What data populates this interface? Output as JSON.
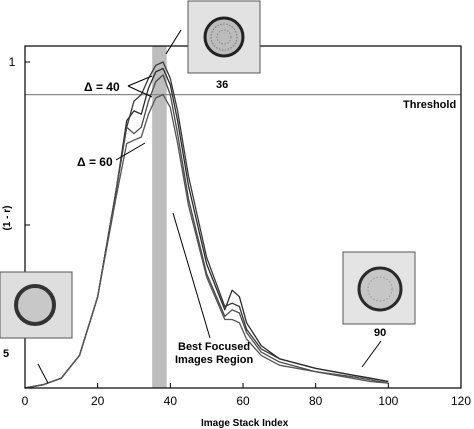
{
  "chart_data": {
    "type": "line",
    "xlabel": "Image  Stack Index",
    "ylabel": "(1 - r)",
    "xlim": [
      0,
      120
    ],
    "ylim": [
      0,
      1.05
    ],
    "x_ticks": [
      "0",
      "20",
      "40",
      "60",
      "80",
      "100",
      "120"
    ],
    "y_ticks": [
      "1"
    ],
    "grid": false,
    "threshold": {
      "value": 0.9,
      "label": "Threshold"
    },
    "best_focus_band": {
      "x_range": [
        35,
        39
      ],
      "label_line1": "Best Focused",
      "label_line2": "Images Region"
    },
    "delta_labels": [
      "Δ = 40",
      "Δ = 60"
    ],
    "inset_labels": [
      "36",
      "5",
      "90"
    ],
    "series": [
      {
        "x": [
          0,
          5,
          10,
          15,
          20,
          25,
          28,
          30,
          32,
          34,
          36,
          38,
          40,
          42,
          45,
          50,
          55,
          57,
          59,
          61,
          65,
          70,
          80,
          90,
          95,
          100
        ],
        "y": [
          0,
          0.01,
          0.03,
          0.1,
          0.28,
          0.6,
          0.8,
          0.88,
          0.9,
          0.95,
          0.99,
          1.0,
          0.95,
          0.85,
          0.65,
          0.4,
          0.25,
          0.26,
          0.25,
          0.18,
          0.12,
          0.09,
          0.06,
          0.04,
          0.03,
          0.02
        ]
      },
      {
        "x": [
          0,
          5,
          10,
          15,
          20,
          25,
          28,
          30,
          32,
          34,
          36,
          38,
          40,
          42,
          45,
          50,
          55,
          57,
          59,
          61,
          65,
          70,
          80,
          90,
          95,
          100
        ],
        "y": [
          0,
          0.01,
          0.03,
          0.1,
          0.28,
          0.6,
          0.82,
          0.85,
          0.84,
          0.92,
          0.97,
          0.98,
          0.93,
          0.82,
          0.62,
          0.38,
          0.24,
          0.3,
          0.28,
          0.2,
          0.13,
          0.09,
          0.06,
          0.04,
          0.03,
          0.02
        ]
      },
      {
        "x": [
          0,
          5,
          10,
          15,
          20,
          25,
          28,
          30,
          32,
          34,
          36,
          38,
          40,
          42,
          45,
          50,
          55,
          57,
          59,
          61,
          65,
          70,
          80,
          90,
          95,
          100
        ],
        "y": [
          0,
          0.01,
          0.03,
          0.1,
          0.28,
          0.6,
          0.8,
          0.78,
          0.8,
          0.88,
          0.94,
          0.96,
          0.9,
          0.78,
          0.58,
          0.35,
          0.22,
          0.24,
          0.23,
          0.17,
          0.11,
          0.08,
          0.05,
          0.035,
          0.025,
          0.015
        ]
      },
      {
        "x": [
          0,
          5,
          10,
          15,
          20,
          25,
          28,
          30,
          32,
          34,
          36,
          38,
          40,
          42,
          45,
          50,
          55,
          57,
          59,
          61,
          65,
          70,
          80,
          90,
          95,
          100
        ],
        "y": [
          0,
          0.01,
          0.03,
          0.1,
          0.28,
          0.58,
          0.75,
          0.76,
          0.77,
          0.84,
          0.89,
          0.9,
          0.86,
          0.75,
          0.56,
          0.34,
          0.21,
          0.21,
          0.2,
          0.15,
          0.1,
          0.07,
          0.05,
          0.03,
          0.02,
          0.015
        ]
      }
    ]
  }
}
